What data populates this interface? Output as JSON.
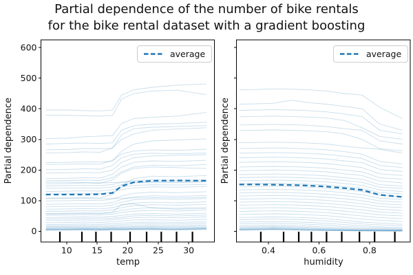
{
  "title": {
    "line1": "Partial dependence of the number of bike rentals",
    "line2": "for the bike rental dataset with a gradient boosting"
  },
  "legend": {
    "label": "average"
  },
  "colors": {
    "average_line": "#1f77b4",
    "ice_line": "#1f77b4",
    "ice_opacity": 0.25,
    "decile_marks": "#000000",
    "spine": "#000000"
  },
  "chart_data": [
    {
      "type": "line",
      "feature": "temp",
      "xlabel": "temp",
      "ylabel": "Partial dependence",
      "legend_label": "average",
      "xlim": [
        5.8,
        34.2
      ],
      "ylim": [
        -35,
        625
      ],
      "xticks": [
        10,
        15,
        20,
        25,
        30
      ],
      "xtick_labels": [
        "10",
        "15",
        "20",
        "25",
        "30"
      ],
      "yticks": [
        0,
        100,
        200,
        300,
        400,
        500,
        600
      ],
      "ytick_labels": [
        "0",
        "100",
        "200",
        "300",
        "400",
        "500",
        "600"
      ],
      "show_ytick_labels": true,
      "deciles": [
        8.9,
        12.5,
        14.8,
        17.3,
        20.4,
        23.1,
        25.5,
        28.0,
        30.6
      ],
      "x": [
        6.6,
        10,
        13,
        15.5,
        17.5,
        19,
        21,
        24,
        28,
        32.9
      ],
      "average": [
        120,
        120,
        120,
        121,
        125,
        147,
        160,
        165,
        166,
        165
      ],
      "ice_lines": [
        [
          396,
          396,
          394,
          393,
          396,
          445,
          462,
          470,
          477,
          481
        ],
        [
          379,
          379,
          377,
          376,
          378,
          432,
          450,
          458,
          461,
          446
        ],
        [
          303,
          304,
          309,
          311,
          312,
          352,
          368,
          372,
          376,
          388
        ],
        [
          285,
          287,
          288,
          287,
          289,
          330,
          345,
          350,
          352,
          356
        ],
        [
          266,
          267,
          270,
          269,
          271,
          315,
          335,
          340,
          342,
          345
        ],
        [
          256,
          257,
          259,
          258,
          272,
          300,
          318,
          330,
          334,
          338
        ],
        [
          224,
          225,
          227,
          226,
          228,
          262,
          285,
          295,
          298,
          302
        ],
        [
          218,
          219,
          220,
          219,
          232,
          252,
          262,
          266,
          264,
          268
        ],
        [
          201,
          202,
          204,
          203,
          215,
          240,
          252,
          255,
          253,
          256
        ],
        [
          190,
          191,
          192,
          191,
          200,
          225,
          240,
          246,
          248,
          250
        ],
        [
          172,
          173,
          175,
          174,
          186,
          210,
          225,
          230,
          228,
          232
        ],
        [
          165,
          166,
          167,
          166,
          175,
          195,
          210,
          216,
          214,
          218
        ],
        [
          155,
          156,
          158,
          157,
          168,
          190,
          205,
          210,
          208,
          205
        ],
        [
          160,
          160,
          159,
          158,
          159,
          160,
          161,
          162,
          161,
          163
        ],
        [
          148,
          149,
          150,
          149,
          153,
          160,
          166,
          168,
          166,
          168
        ],
        [
          140,
          141,
          142,
          141,
          145,
          152,
          158,
          160,
          159,
          161
        ],
        [
          130,
          131,
          132,
          131,
          136,
          144,
          150,
          152,
          151,
          153
        ],
        [
          122,
          123,
          124,
          123,
          128,
          136,
          142,
          145,
          144,
          146
        ],
        [
          108,
          109,
          110,
          109,
          120,
          150,
          172,
          180,
          178,
          182
        ],
        [
          108,
          108,
          107,
          106,
          107,
          108,
          109,
          110,
          109,
          111
        ],
        [
          99,
          100,
          101,
          100,
          105,
          115,
          124,
          128,
          126,
          129
        ],
        [
          88,
          89,
          90,
          89,
          94,
          104,
          112,
          116,
          114,
          117
        ],
        [
          80,
          81,
          82,
          81,
          86,
          95,
          103,
          106,
          104,
          107
        ],
        [
          72,
          73,
          74,
          73,
          77,
          85,
          92,
          95,
          93,
          96
        ],
        [
          65,
          66,
          67,
          66,
          70,
          77,
          84,
          87,
          85,
          88
        ],
        [
          58,
          59,
          60,
          59,
          62,
          68,
          74,
          77,
          75,
          78
        ],
        [
          56,
          57,
          58,
          57,
          62,
          88,
          90,
          76,
          72,
          74
        ],
        [
          52,
          53,
          54,
          53,
          56,
          61,
          66,
          68,
          66,
          69
        ],
        [
          45,
          46,
          47,
          46,
          48,
          52,
          56,
          58,
          56,
          59
        ],
        [
          40,
          41,
          42,
          41,
          43,
          46,
          50,
          52,
          50,
          53
        ],
        [
          35,
          36,
          37,
          36,
          38,
          41,
          44,
          46,
          44,
          47
        ],
        [
          28,
          29,
          30,
          29,
          31,
          34,
          37,
          38,
          36,
          39
        ],
        [
          22,
          23,
          24,
          23,
          25,
          27,
          29,
          30,
          29,
          31
        ],
        [
          18,
          19,
          20,
          19,
          20,
          22,
          24,
          25,
          24,
          26
        ],
        [
          15,
          16,
          16,
          15,
          16,
          18,
          19,
          20,
          19,
          21
        ],
        [
          12,
          13,
          13,
          12,
          13,
          14,
          15,
          16,
          15,
          17
        ],
        [
          10,
          11,
          11,
          10,
          11,
          12,
          13,
          13,
          12,
          14
        ],
        [
          8,
          9,
          9,
          8,
          9,
          10,
          10,
          11,
          10,
          12
        ],
        [
          7,
          7,
          8,
          7,
          8,
          8,
          9,
          9,
          8,
          10
        ],
        [
          6,
          6,
          7,
          6,
          7,
          7,
          8,
          8,
          7,
          9
        ],
        [
          5,
          5,
          6,
          5,
          6,
          6,
          7,
          7,
          6,
          8
        ],
        [
          4,
          5,
          5,
          4,
          5,
          5,
          6,
          6,
          5,
          7
        ],
        [
          3,
          4,
          4,
          3,
          4,
          4,
          5,
          5,
          4,
          6
        ]
      ]
    },
    {
      "type": "line",
      "feature": "humidity",
      "xlabel": "humidity",
      "ylabel": "Partial dependence",
      "legend_label": "average",
      "xlim": [
        0.2735,
        0.961
      ],
      "ylim": [
        -35,
        625
      ],
      "xticks": [
        0.4,
        0.6,
        0.8
      ],
      "xtick_labels": [
        "0.4",
        "0.6",
        "0.8"
      ],
      "yticks": [
        0,
        100,
        200,
        300,
        400,
        500,
        600
      ],
      "ytick_labels": [],
      "show_ytick_labels": false,
      "deciles": [
        0.37,
        0.46,
        0.52,
        0.57,
        0.63,
        0.69,
        0.76,
        0.82,
        0.9
      ],
      "x": [
        0.285,
        0.35,
        0.42,
        0.49,
        0.56,
        0.63,
        0.7,
        0.77,
        0.84,
        0.93
      ],
      "average": [
        153,
        153,
        152,
        151,
        149,
        146,
        141,
        135,
        119,
        112
      ],
      "ice_lines": [
        [
          462,
          463,
          465,
          464,
          462,
          458,
          450,
          445,
          405,
          368
        ],
        [
          415,
          416,
          418,
          428,
          420,
          415,
          408,
          400,
          350,
          330
        ],
        [
          395,
          396,
          397,
          396,
          394,
          390,
          383,
          375,
          330,
          318
        ],
        [
          374,
          375,
          376,
          375,
          373,
          370,
          362,
          338,
          310,
          300
        ],
        [
          347,
          348,
          349,
          348,
          346,
          342,
          335,
          330,
          295,
          285
        ],
        [
          329,
          330,
          331,
          330,
          328,
          325,
          318,
          300,
          270,
          262
        ],
        [
          289,
          290,
          291,
          290,
          288,
          285,
          278,
          272,
          268,
          255
        ],
        [
          270,
          271,
          272,
          271,
          269,
          266,
          260,
          252,
          228,
          220
        ],
        [
          255,
          256,
          257,
          256,
          254,
          251,
          245,
          238,
          215,
          208
        ],
        [
          240,
          241,
          242,
          241,
          239,
          236,
          230,
          224,
          202,
          195
        ],
        [
          225,
          226,
          227,
          226,
          224,
          221,
          215,
          208,
          188,
          182
        ],
        [
          210,
          211,
          212,
          211,
          209,
          206,
          200,
          194,
          175,
          170
        ],
        [
          198,
          199,
          200,
          199,
          197,
          194,
          188,
          182,
          164,
          158
        ],
        [
          185,
          186,
          187,
          186,
          184,
          181,
          175,
          170,
          152,
          148
        ],
        [
          175,
          176,
          177,
          176,
          174,
          171,
          166,
          160,
          144,
          140
        ],
        [
          165,
          166,
          167,
          166,
          164,
          161,
          156,
          150,
          135,
          130
        ],
        [
          155,
          156,
          157,
          156,
          154,
          151,
          146,
          140,
          126,
          122
        ],
        [
          145,
          146,
          147,
          146,
          144,
          141,
          136,
          130,
          117,
          113
        ],
        [
          135,
          136,
          137,
          136,
          134,
          131,
          126,
          120,
          108,
          104
        ],
        [
          125,
          126,
          127,
          126,
          124,
          121,
          116,
          110,
          99,
          95
        ],
        [
          115,
          116,
          117,
          116,
          114,
          111,
          106,
          100,
          90,
          86
        ],
        [
          105,
          106,
          107,
          106,
          104,
          101,
          96,
          90,
          81,
          77
        ],
        [
          95,
          96,
          97,
          96,
          94,
          91,
          86,
          80,
          72,
          68
        ],
        [
          85,
          86,
          87,
          86,
          84,
          81,
          76,
          70,
          63,
          59
        ],
        [
          75,
          76,
          77,
          76,
          74,
          71,
          66,
          60,
          54,
          50
        ],
        [
          65,
          66,
          67,
          66,
          64,
          61,
          56,
          50,
          45,
          41
        ],
        [
          55,
          56,
          57,
          56,
          54,
          51,
          46,
          40,
          36,
          32
        ],
        [
          45,
          46,
          47,
          46,
          44,
          41,
          36,
          30,
          27,
          23
        ],
        [
          38,
          39,
          40,
          39,
          37,
          34,
          29,
          24,
          21,
          18
        ],
        [
          30,
          31,
          32,
          31,
          29,
          26,
          22,
          18,
          15,
          12
        ],
        [
          24,
          25,
          26,
          25,
          23,
          20,
          16,
          13,
          11,
          9
        ],
        [
          18,
          19,
          20,
          19,
          17,
          14,
          11,
          9,
          8,
          7
        ],
        [
          14,
          15,
          16,
          15,
          13,
          10,
          8,
          7,
          6,
          5
        ],
        [
          11,
          12,
          13,
          12,
          10,
          8,
          6,
          5,
          5,
          4
        ],
        [
          9,
          10,
          11,
          10,
          8,
          6,
          5,
          4,
          4,
          3
        ],
        [
          7,
          8,
          9,
          8,
          6,
          5,
          4,
          3,
          3,
          2
        ],
        [
          6,
          7,
          8,
          7,
          5,
          4,
          3,
          3,
          2,
          2
        ],
        [
          5,
          6,
          7,
          6,
          4,
          3,
          3,
          2,
          2,
          1
        ],
        [
          4,
          5,
          6,
          5,
          4,
          3,
          2,
          2,
          1,
          1
        ],
        [
          3,
          4,
          5,
          4,
          3,
          2,
          2,
          1,
          1,
          1
        ]
      ]
    }
  ]
}
